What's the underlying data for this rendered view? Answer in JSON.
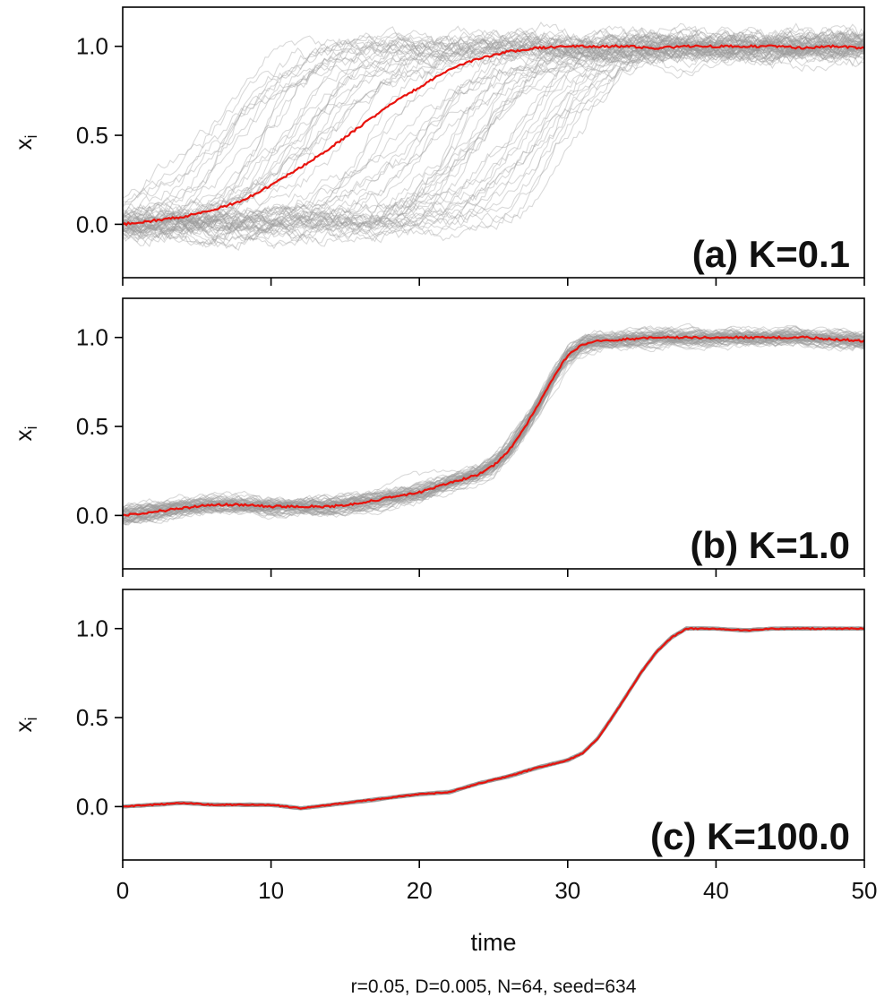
{
  "chart_data": [
    {
      "type": "line",
      "panel_label": "(a) K=0.1",
      "ylabel": "x",
      "ylabel_sub": "i",
      "xlim": [
        0,
        50
      ],
      "ylim": [
        -0.3,
        1.22
      ],
      "x_ticks": [
        0,
        10,
        20,
        30,
        40,
        50
      ],
      "y_ticks": [
        0.0,
        0.5,
        1.0
      ],
      "y_tick_labels": [
        "0.0",
        "0.5",
        "1.0"
      ],
      "show_x_tick_labels": false,
      "series": [
        {
          "name": "individual trajectories",
          "color": "#9a9a9a",
          "count": 64,
          "spread": 0.1,
          "onset_range": [
            5,
            32
          ],
          "onset_jitter": 0.05
        },
        {
          "name": "mean",
          "color": "#e8120c",
          "x": [
            0,
            2,
            4,
            6,
            8,
            10,
            12,
            14,
            16,
            18,
            20,
            22,
            24,
            26,
            28,
            30,
            32,
            34,
            36,
            38,
            40,
            42,
            44,
            46,
            48,
            50
          ],
          "y": [
            0.0,
            0.02,
            0.04,
            0.08,
            0.13,
            0.22,
            0.32,
            0.43,
            0.55,
            0.67,
            0.77,
            0.87,
            0.93,
            0.97,
            0.99,
            1.0,
            1.0,
            1.0,
            0.99,
            1.0,
            1.0,
            1.0,
            1.0,
            0.99,
            1.0,
            0.99
          ]
        }
      ]
    },
    {
      "type": "line",
      "panel_label": "(b) K=1.0",
      "ylabel": "x",
      "ylabel_sub": "i",
      "xlim": [
        0,
        50
      ],
      "ylim": [
        -0.3,
        1.22
      ],
      "x_ticks": [
        0,
        10,
        20,
        30,
        40,
        50
      ],
      "y_ticks": [
        0.0,
        0.5,
        1.0
      ],
      "y_tick_labels": [
        "0.0",
        "0.5",
        "1.0"
      ],
      "show_x_tick_labels": false,
      "series": [
        {
          "name": "individual trajectories",
          "color": "#9a9a9a",
          "count": 64,
          "spread": 0.06,
          "onset_range": [
            0,
            0
          ],
          "onset_jitter": 0.0
        },
        {
          "name": "mean",
          "color": "#e8120c",
          "x": [
            0,
            2,
            4,
            6,
            8,
            10,
            12,
            14,
            16,
            18,
            20,
            22,
            24,
            25,
            26,
            27,
            28,
            29,
            30,
            31,
            32,
            34,
            36,
            38,
            40,
            42,
            44,
            46,
            48,
            50
          ],
          "y": [
            0.0,
            0.02,
            0.04,
            0.06,
            0.06,
            0.05,
            0.05,
            0.05,
            0.07,
            0.1,
            0.13,
            0.18,
            0.23,
            0.28,
            0.36,
            0.48,
            0.62,
            0.77,
            0.9,
            0.96,
            0.98,
            0.99,
            1.0,
            1.0,
            1.0,
            1.0,
            1.0,
            1.0,
            0.99,
            0.98
          ]
        }
      ]
    },
    {
      "type": "line",
      "panel_label": "(c) K=100.0",
      "ylabel": "x",
      "ylabel_sub": "i",
      "xlim": [
        0,
        50
      ],
      "ylim": [
        -0.3,
        1.22
      ],
      "x_ticks": [
        0,
        10,
        20,
        30,
        40,
        50
      ],
      "x_tick_labels": [
        "0",
        "10",
        "20",
        "30",
        "40",
        "50"
      ],
      "y_ticks": [
        0.0,
        0.5,
        1.0
      ],
      "y_tick_labels": [
        "0.0",
        "0.5",
        "1.0"
      ],
      "show_x_tick_labels": true,
      "xlabel": "time",
      "series": [
        {
          "name": "individual trajectories",
          "color": "#9a9a9a",
          "count": 64,
          "spread": 0.006,
          "onset_range": [
            0,
            0
          ],
          "onset_jitter": 0.0
        },
        {
          "name": "mean",
          "color": "#e8120c",
          "x": [
            0,
            2,
            4,
            6,
            8,
            10,
            11,
            12,
            14,
            16,
            18,
            20,
            22,
            24,
            26,
            28,
            30,
            31,
            32,
            33,
            34,
            35,
            36,
            37,
            38,
            40,
            42,
            44,
            46,
            48,
            50
          ],
          "y": [
            0.0,
            0.01,
            0.02,
            0.01,
            0.01,
            0.01,
            0.0,
            -0.01,
            0.01,
            0.03,
            0.05,
            0.07,
            0.08,
            0.13,
            0.17,
            0.22,
            0.26,
            0.3,
            0.38,
            0.5,
            0.63,
            0.76,
            0.87,
            0.95,
            1.0,
            1.0,
            0.99,
            1.0,
            1.0,
            1.0,
            1.0
          ]
        }
      ]
    }
  ],
  "caption": "r=0.05, D=0.005, N=64, seed=634"
}
